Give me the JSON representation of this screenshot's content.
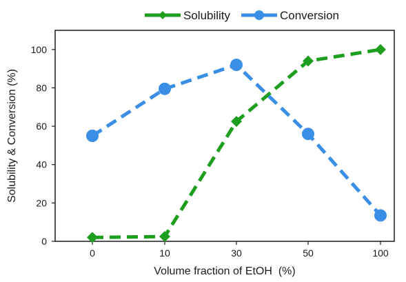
{
  "chart_data": {
    "type": "line",
    "categories": [
      "0",
      "10",
      "30",
      "50",
      "100"
    ],
    "series": [
      {
        "name": "Solubility",
        "values": [
          2,
          2.5,
          62.5,
          94,
          100
        ],
        "color": "#1e9e1e",
        "marker": "diamond"
      },
      {
        "name": "Conversion",
        "values": [
          55,
          79.5,
          92,
          56,
          13.5
        ],
        "color": "#3a8ee6",
        "marker": "circle"
      }
    ],
    "xlabel": "Volume fraction of EtOH  (%)",
    "ylabel": "Solubility & Conversion (%)",
    "ylim": [
      0,
      110
    ],
    "yticks": [
      "0",
      "20",
      "40",
      "60",
      "80",
      "100"
    ],
    "ytick_values": [
      0,
      20,
      40,
      60,
      80,
      100
    ],
    "line_style": "dashed",
    "grid": false,
    "legend": "top-center"
  }
}
